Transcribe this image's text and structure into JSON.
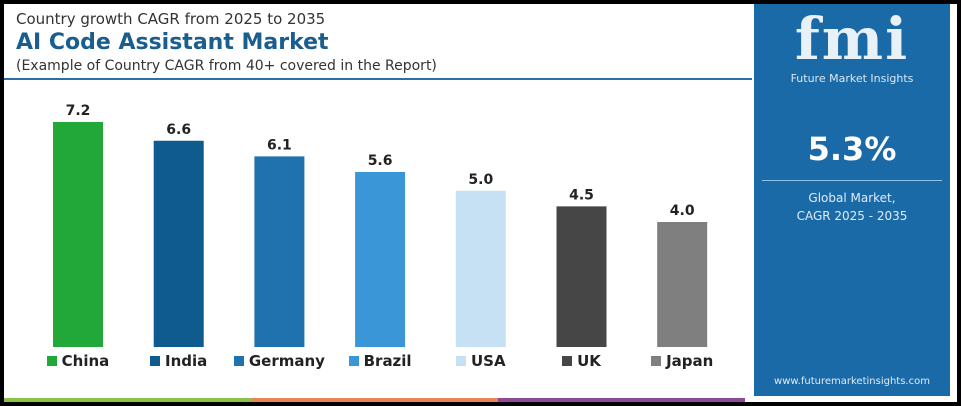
{
  "header": {
    "subtitle_top": "Country growth CAGR from 2025 to 2035",
    "title": "AI Code Assistant Market",
    "subtitle_bottom": "(Example of Country CAGR from 40+ covered in the Report)"
  },
  "chart_data": {
    "type": "bar",
    "categories": [
      "China",
      "India",
      "Germany",
      "Brazil",
      "USA",
      "UK",
      "Japan"
    ],
    "values": [
      7.2,
      6.6,
      6.1,
      5.6,
      5.0,
      4.5,
      4.0
    ],
    "value_labels": [
      "7.2",
      "6.6",
      "6.1",
      "5.6",
      "5.0",
      "4.5",
      "4.0"
    ],
    "colors": [
      "#22a838",
      "#0f5a8e",
      "#1f72ae",
      "#3a96d6",
      "#c5e1f3",
      "#464646",
      "#7f7f7f"
    ],
    "ylim": [
      0,
      7.2
    ],
    "grid": false,
    "legend": "bottom"
  },
  "panel": {
    "logo": "fmi",
    "logo_sub": "Future Market Insights",
    "value": "5.3%",
    "label_line1": "Global Market,",
    "label_line2": "CAGR 2025 - 2035",
    "url": "www.futuremarketinsights.com"
  },
  "strip_colors": [
    "#8bc34a",
    "#e8845a",
    "#8e4a9a"
  ]
}
